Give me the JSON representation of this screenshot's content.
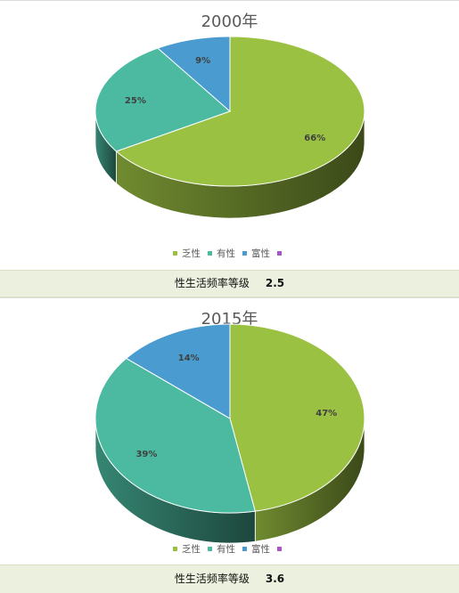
{
  "colors": {
    "乏性": "#9bc142",
    "有性": "#4bbaa0",
    "富性": "#4a9bd0",
    "empty": "#a855c8"
  },
  "legend": [
    {
      "label": "乏性",
      "color": "#9bc142"
    },
    {
      "label": "有性",
      "color": "#4bbaa0"
    },
    {
      "label": "富性",
      "color": "#4a9bd0"
    },
    {
      "label": "",
      "color": "#a855c8"
    }
  ],
  "charts": [
    {
      "footer_label": "性生活频率等级",
      "footer_value": "2.5"
    },
    {
      "footer_label": "性生活频率等级",
      "footer_value": "3.6"
    }
  ],
  "chart_data": [
    {
      "type": "pie",
      "title": "2000年",
      "categories": [
        "乏性",
        "有性",
        "富性"
      ],
      "values": [
        66,
        25,
        9
      ],
      "labels": [
        "66%",
        "25%",
        "9%"
      ],
      "legend": "bottom",
      "style": "3d"
    },
    {
      "type": "pie",
      "title": "2015年",
      "categories": [
        "乏性",
        "有性",
        "富性"
      ],
      "values": [
        47,
        39,
        14
      ],
      "labels": [
        "47%",
        "39%",
        "14%"
      ],
      "legend": "bottom",
      "style": "3d"
    }
  ]
}
